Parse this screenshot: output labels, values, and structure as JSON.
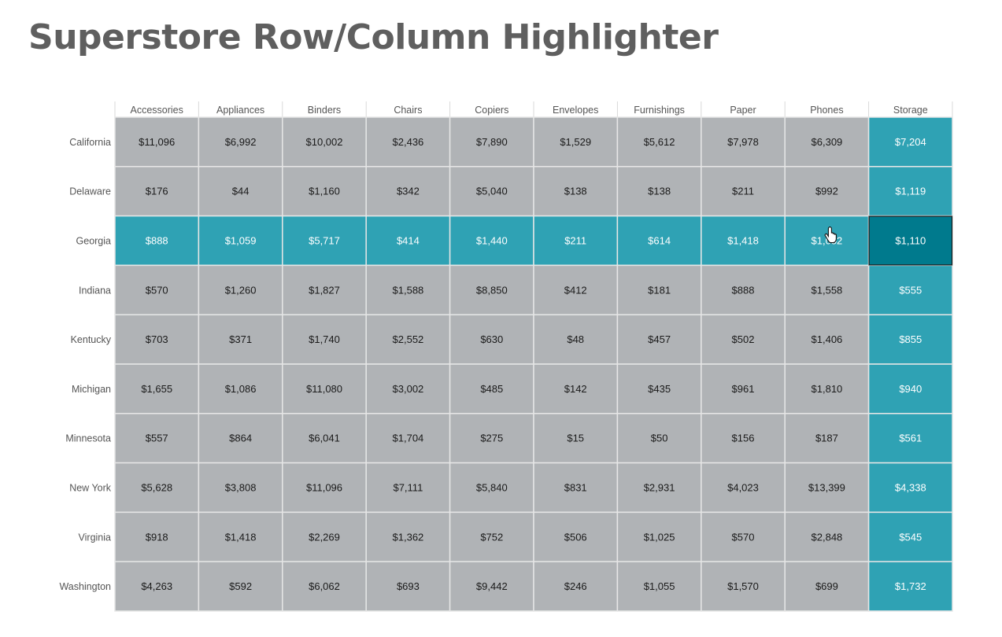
{
  "title": "Superstore Row/Column Highlighter",
  "colors": {
    "base_cell": "#b0b3b6",
    "highlight_cell": "#2fa2b4",
    "selected_cell": "#007a8d",
    "selected_border": "#1a1a1a",
    "grid_line": "#e6e6e6",
    "text_dark": "#1a1a1a",
    "text_light": "#ffffff",
    "title": "#5f5f5f"
  },
  "highlight": {
    "row": "Georgia",
    "column": "Storage"
  },
  "chart_data": {
    "type": "heatmap",
    "columns": [
      "Accessories",
      "Appliances",
      "Binders",
      "Chairs",
      "Copiers",
      "Envelopes",
      "Furnishings",
      "Paper",
      "Phones",
      "Storage"
    ],
    "rows": [
      "California",
      "Delaware",
      "Georgia",
      "Indiana",
      "Kentucky",
      "Michigan",
      "Minnesota",
      "New York",
      "Virginia",
      "Washington"
    ],
    "values": [
      [
        "$11,096",
        "$6,992",
        "$10,002",
        "$2,436",
        "$7,890",
        "$1,529",
        "$5,612",
        "$7,978",
        "$6,309",
        "$7,204"
      ],
      [
        "$176",
        "$44",
        "$1,160",
        "$342",
        "$5,040",
        "$138",
        "$138",
        "$211",
        "$992",
        "$1,119"
      ],
      [
        "$888",
        "$1,059",
        "$5,717",
        "$414",
        "$1,440",
        "$211",
        "$614",
        "$1,418",
        "$1,052",
        "$1,110"
      ],
      [
        "$570",
        "$1,260",
        "$1,827",
        "$1,588",
        "$8,850",
        "$412",
        "$181",
        "$888",
        "$1,558",
        "$555"
      ],
      [
        "$703",
        "$371",
        "$1,740",
        "$2,552",
        "$630",
        "$48",
        "$457",
        "$502",
        "$1,406",
        "$855"
      ],
      [
        "$1,655",
        "$1,086",
        "$11,080",
        "$3,002",
        "$485",
        "$142",
        "$435",
        "$961",
        "$1,810",
        "$940"
      ],
      [
        "$557",
        "$864",
        "$6,041",
        "$1,704",
        "$275",
        "$15",
        "$50",
        "$156",
        "$187",
        "$561"
      ],
      [
        "$5,628",
        "$3,808",
        "$11,096",
        "$7,111",
        "$5,840",
        "$831",
        "$2,931",
        "$4,023",
        "$13,399",
        "$4,338"
      ],
      [
        "$918",
        "$1,418",
        "$2,269",
        "$1,362",
        "$752",
        "$506",
        "$1,025",
        "$570",
        "$2,848",
        "$545"
      ],
      [
        "$4,263",
        "$592",
        "$6,062",
        "$693",
        "$9,442",
        "$246",
        "$1,055",
        "$1,570",
        "$699",
        "$1,732"
      ]
    ]
  }
}
